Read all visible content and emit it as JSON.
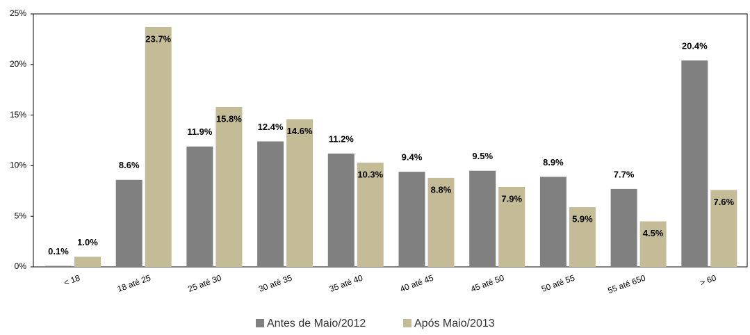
{
  "chart_data": {
    "type": "bar",
    "categories": [
      "< 18",
      "18 até 25",
      "25 até 30",
      "30 até 35",
      "35 até 40",
      "40 até 45",
      "45 até 50",
      "50 até 55",
      "55 até 650",
      "> 60"
    ],
    "series": [
      {
        "name": "Antes de Maio/2012",
        "color": "#808080",
        "values": [
          0.1,
          8.6,
          11.9,
          12.4,
          11.2,
          9.4,
          9.5,
          8.9,
          7.7,
          20.4
        ],
        "value_labels": [
          "0.1%",
          "8.6%",
          "11.9%",
          "12.4%",
          "11.2%",
          "9.4%",
          "9.5%",
          "8.9%",
          "7.7%",
          "20.4%"
        ]
      },
      {
        "name": "Após Maio/2013",
        "color": "#c4bc96",
        "values": [
          1.0,
          23.7,
          15.8,
          14.6,
          10.3,
          8.8,
          7.9,
          5.9,
          4.5,
          7.6
        ],
        "value_labels": [
          "1.0%",
          "23.7%",
          "15.8%",
          "14.6%",
          "10.3%",
          "8.8%",
          "7.9%",
          "5.9%",
          "4.5%",
          "7.6%"
        ]
      }
    ],
    "ylim": [
      0,
      25
    ],
    "yticks": [
      {
        "value": 0,
        "label": "0%"
      },
      {
        "value": 5,
        "label": "5%"
      },
      {
        "value": 10,
        "label": "10%"
      },
      {
        "value": 15,
        "label": "15%"
      },
      {
        "value": 20,
        "label": "20%"
      },
      {
        "value": 25,
        "label": "25%"
      }
    ],
    "legend": "bottom"
  }
}
